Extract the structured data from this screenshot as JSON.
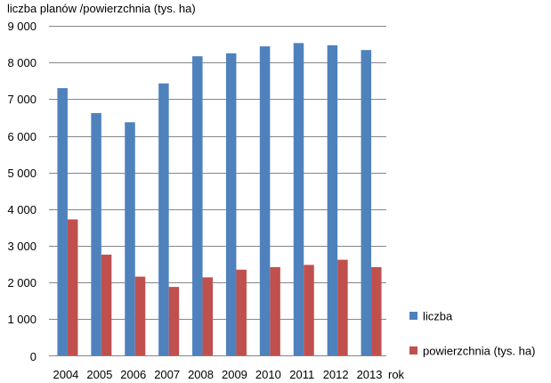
{
  "chart_data": {
    "type": "bar",
    "title": "",
    "ylabel": "liczba planów /powierzchnia (tys. ha)",
    "xlabel": "rok",
    "categories": [
      "2004",
      "2005",
      "2006",
      "2007",
      "2008",
      "2009",
      "2010",
      "2011",
      "2012",
      "2013"
    ],
    "series": [
      {
        "name": "liczba",
        "color": "#4F81BD",
        "values": [
          7300,
          6620,
          6370,
          7430,
          8170,
          8250,
          8440,
          8530,
          8470,
          8340
        ]
      },
      {
        "name": "powierzchnia (tys. ha)",
        "color": "#C0504D",
        "values": [
          3720,
          2760,
          2160,
          1880,
          2140,
          2350,
          2420,
          2480,
          2620,
          2420
        ]
      }
    ],
    "ylim": [
      0,
      9000
    ],
    "yticks": [
      0,
      1000,
      2000,
      3000,
      4000,
      5000,
      6000,
      7000,
      8000,
      9000
    ],
    "ytick_labels": [
      "0",
      "1 000",
      "2 000",
      "3 000",
      "4 000",
      "5 000",
      "6 000",
      "7 000",
      "8 000",
      "9 000"
    ],
    "grid": true,
    "legend_position": "bottom-right"
  }
}
